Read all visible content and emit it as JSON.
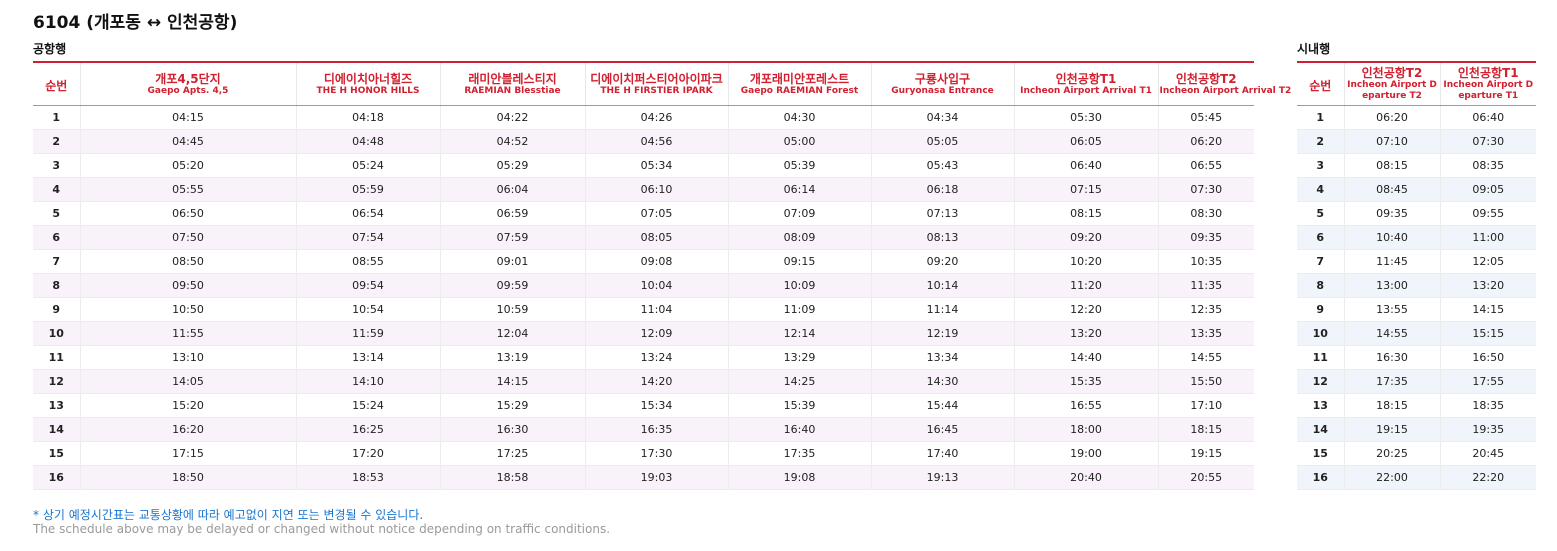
{
  "route_title": "6104 (개포동 ↔ 인천공항)",
  "airbound": {
    "label": "공항행",
    "seq_header": "순번",
    "columns": [
      {
        "ko": "개포4,5단지",
        "en": "Gaepo Apts. 4,5"
      },
      {
        "ko": "디에이치아너힐즈",
        "en": "THE H HONOR HILLS"
      },
      {
        "ko": "래미안블레스티지",
        "en": "RAEMIAN Blesstiae"
      },
      {
        "ko": "디에이치퍼스티어아이파크",
        "en": "THE H FIRSTIER IPARK"
      },
      {
        "ko": "개포래미안포레스트",
        "en": "Gaepo RAEMIAN Forest"
      },
      {
        "ko": "구룡사입구",
        "en": "Guryonasa Entrance"
      },
      {
        "ko": "인천공항T1",
        "en": "Incheon Airport Arrival T1"
      },
      {
        "ko": "인천공항T2",
        "en": "Incheon Airport Arrival T2"
      }
    ],
    "rows": [
      [
        "1",
        "04:15",
        "04:18",
        "04:22",
        "04:26",
        "04:30",
        "04:34",
        "05:30",
        "05:45"
      ],
      [
        "2",
        "04:45",
        "04:48",
        "04:52",
        "04:56",
        "05:00",
        "05:05",
        "06:05",
        "06:20"
      ],
      [
        "3",
        "05:20",
        "05:24",
        "05:29",
        "05:34",
        "05:39",
        "05:43",
        "06:40",
        "06:55"
      ],
      [
        "4",
        "05:55",
        "05:59",
        "06:04",
        "06:10",
        "06:14",
        "06:18",
        "07:15",
        "07:30"
      ],
      [
        "5",
        "06:50",
        "06:54",
        "06:59",
        "07:05",
        "07:09",
        "07:13",
        "08:15",
        "08:30"
      ],
      [
        "6",
        "07:50",
        "07:54",
        "07:59",
        "08:05",
        "08:09",
        "08:13",
        "09:20",
        "09:35"
      ],
      [
        "7",
        "08:50",
        "08:55",
        "09:01",
        "09:08",
        "09:15",
        "09:20",
        "10:20",
        "10:35"
      ],
      [
        "8",
        "09:50",
        "09:54",
        "09:59",
        "10:04",
        "10:09",
        "10:14",
        "11:20",
        "11:35"
      ],
      [
        "9",
        "10:50",
        "10:54",
        "10:59",
        "11:04",
        "11:09",
        "11:14",
        "12:20",
        "12:35"
      ],
      [
        "10",
        "11:55",
        "11:59",
        "12:04",
        "12:09",
        "12:14",
        "12:19",
        "13:20",
        "13:35"
      ],
      [
        "11",
        "13:10",
        "13:14",
        "13:19",
        "13:24",
        "13:29",
        "13:34",
        "14:40",
        "14:55"
      ],
      [
        "12",
        "14:05",
        "14:10",
        "14:15",
        "14:20",
        "14:25",
        "14:30",
        "15:35",
        "15:50"
      ],
      [
        "13",
        "15:20",
        "15:24",
        "15:29",
        "15:34",
        "15:39",
        "15:44",
        "16:55",
        "17:10"
      ],
      [
        "14",
        "16:20",
        "16:25",
        "16:30",
        "16:35",
        "16:40",
        "16:45",
        "18:00",
        "18:15"
      ],
      [
        "15",
        "17:15",
        "17:20",
        "17:25",
        "17:30",
        "17:35",
        "17:40",
        "19:00",
        "19:15"
      ],
      [
        "16",
        "18:50",
        "18:53",
        "18:58",
        "19:03",
        "19:08",
        "19:13",
        "20:40",
        "20:55"
      ]
    ]
  },
  "citybound": {
    "label": "시내행",
    "seq_header": "순번",
    "columns": [
      {
        "ko": "인천공항T2",
        "en": "Incheon Airport Departure T2"
      },
      {
        "ko": "인천공항T1",
        "en": "Incheon Airport Departure T1"
      }
    ],
    "rows": [
      [
        "1",
        "06:20",
        "06:40"
      ],
      [
        "2",
        "07:10",
        "07:30"
      ],
      [
        "3",
        "08:15",
        "08:35"
      ],
      [
        "4",
        "08:45",
        "09:05"
      ],
      [
        "5",
        "09:35",
        "09:55"
      ],
      [
        "6",
        "10:40",
        "11:00"
      ],
      [
        "7",
        "11:45",
        "12:05"
      ],
      [
        "8",
        "13:00",
        "13:20"
      ],
      [
        "9",
        "13:55",
        "14:15"
      ],
      [
        "10",
        "14:55",
        "15:15"
      ],
      [
        "11",
        "16:30",
        "16:50"
      ],
      [
        "12",
        "17:35",
        "17:55"
      ],
      [
        "13",
        "18:15",
        "18:35"
      ],
      [
        "14",
        "19:15",
        "19:35"
      ],
      [
        "15",
        "20:25",
        "20:45"
      ],
      [
        "16",
        "22:00",
        "22:20"
      ]
    ]
  },
  "notice": {
    "ko": "* 상기 예정시간표는 교통상황에 따라 예고없이 지연 또는 변경될 수 있습니다.",
    "en": "The schedule above may be delayed or changed without notice depending on traffic conditions."
  },
  "colors": {
    "accent": "#d1202f",
    "notice_ko": "#1a76d1",
    "notice_en": "#9a9a9a",
    "airbound_row_alt": "#faf2fb",
    "citybound_row_alt": "#eff5fb"
  }
}
